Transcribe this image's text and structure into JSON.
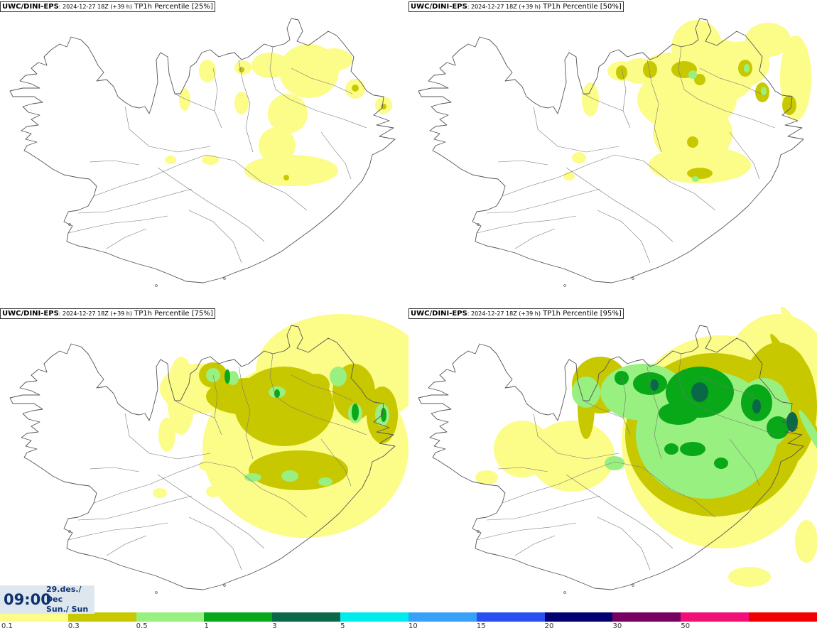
{
  "panels": [
    {
      "source": "UWC/DINI-EPS",
      "run": ": 2024-12-27 18Z (+39 h)",
      "field": "TP1h Percentile [25%]"
    },
    {
      "source": "UWC/DINI-EPS",
      "run": ": 2024-12-27 18Z (+39 h)",
      "field": "TP1h Percentile [50%]"
    },
    {
      "source": "UWC/DINI-EPS",
      "run": ": 2024-12-27 18Z (+39 h)",
      "field": "TP1h Percentile [75%]"
    },
    {
      "source": "UWC/DINI-EPS",
      "run": ": 2024-12-27 18Z (+39 h)",
      "field": "TP1h Percentile [95%]"
    }
  ],
  "valid_time": {
    "time": "09:00",
    "date": "29.des./ Dec",
    "weekday": "Sun./ Sun"
  },
  "legend": {
    "colors": [
      "#fcfc88",
      "#c8c800",
      "#98f080",
      "#08a818",
      "#086848",
      "#00ecec",
      "#38a0f8",
      "#2850f0",
      "#000070",
      "#780060",
      "#f01078",
      "#f00000"
    ],
    "labels": [
      "0.1",
      "0.3",
      "0.5",
      "1",
      "3",
      "5",
      "10",
      "15",
      "20",
      "30",
      "50"
    ]
  }
}
